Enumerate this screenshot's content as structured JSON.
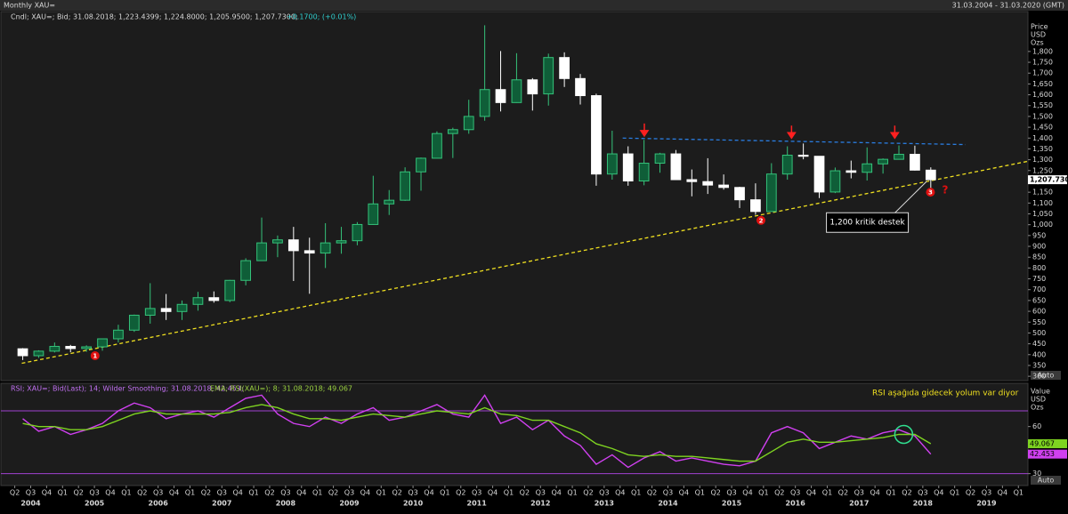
{
  "window_title": "Monthly XAU=",
  "date_range": "31.03.2004 - 31.03.2020 (GMT)",
  "chart_data": [
    {
      "type": "candlestick",
      "legend_text": "Cndl; XAU=; Bid; 31.08.2018; 1,223.4399; 1,224.8000; 1,205.9500; 1,207.7300;",
      "legend_change": "+0.1700; (+0.01%)",
      "axis_label": [
        "Price",
        "USD",
        "Ozs"
      ],
      "scale_button": "Auto",
      "up_color": "#35c27a",
      "down_color": "#ffffff",
      "x": [
        2004.25,
        2004.5,
        2004.75,
        2005,
        2005.25,
        2005.5,
        2005.75,
        2006,
        2006.25,
        2006.5,
        2006.75,
        2007,
        2007.25,
        2007.5,
        2007.75,
        2008,
        2008.25,
        2008.5,
        2008.75,
        2009,
        2009.25,
        2009.5,
        2009.75,
        2010,
        2010.25,
        2010.5,
        2010.75,
        2011,
        2011.25,
        2011.5,
        2011.75,
        2012,
        2012.25,
        2012.5,
        2012.75,
        2013,
        2013.25,
        2013.5,
        2013.75,
        2014,
        2014.25,
        2014.5,
        2014.75,
        2015,
        2015.25,
        2015.5,
        2015.75,
        2016,
        2016.25,
        2016.5,
        2016.75,
        2017,
        2017.25,
        2017.5,
        2017.75,
        2018,
        2018.25,
        2018.5
      ],
      "open": [
        427,
        395,
        416,
        438,
        428,
        436,
        473,
        513,
        582,
        613,
        599,
        632,
        663,
        650,
        743,
        834,
        916,
        930,
        880,
        869,
        916,
        926,
        1001,
        1096,
        1113,
        1244,
        1307,
        1421,
        1439,
        1500,
        1624,
        1564,
        1669,
        1604,
        1772,
        1675,
        1596,
        1234,
        1327,
        1202,
        1284,
        1327,
        1208,
        1199,
        1183,
        1172,
        1115,
        1061,
        1234,
        1321,
        1316,
        1151,
        1249,
        1242,
        1281,
        1302,
        1325,
        1252
      ],
      "high": [
        430,
        420,
        456,
        445,
        443,
        474,
        538,
        585,
        730,
        680,
        650,
        690,
        692,
        745,
        845,
        1033,
        950,
        990,
        940,
        1007,
        990,
        1012,
        1226,
        1160,
        1265,
        1310,
        1431,
        1448,
        1577,
        1921,
        1802,
        1792,
        1677,
        1790,
        1796,
        1696,
        1605,
        1434,
        1362,
        1392,
        1332,
        1345,
        1255,
        1307,
        1232,
        1175,
        1191,
        1284,
        1362,
        1375,
        1316,
        1264,
        1296,
        1357,
        1306,
        1366,
        1365,
        1265
      ],
      "low": [
        375,
        385,
        410,
        411,
        413,
        418,
        456,
        505,
        543,
        560,
        560,
        603,
        640,
        642,
        720,
        834,
        850,
        740,
        681,
        800,
        866,
        905,
        1000,
        1045,
        1110,
        1157,
        1307,
        1308,
        1420,
        1480,
        1523,
        1563,
        1527,
        1550,
        1636,
        1555,
        1180,
        1208,
        1180,
        1182,
        1240,
        1206,
        1131,
        1142,
        1162,
        1077,
        1046,
        1061,
        1208,
        1302,
        1123,
        1146,
        1214,
        1204,
        1236,
        1302,
        1250,
        1160
      ],
      "close": [
        395,
        416,
        438,
        428,
        436,
        473,
        513,
        582,
        613,
        599,
        632,
        663,
        650,
        743,
        834,
        916,
        930,
        880,
        869,
        916,
        926,
        1001,
        1096,
        1113,
        1244,
        1307,
        1421,
        1439,
        1500,
        1624,
        1564,
        1669,
        1604,
        1772,
        1675,
        1596,
        1234,
        1327,
        1202,
        1284,
        1327,
        1208,
        1199,
        1183,
        1172,
        1115,
        1061,
        1234,
        1321,
        1316,
        1151,
        1249,
        1242,
        1281,
        1302,
        1325,
        1252,
        1207.73
      ],
      "last_price": {
        "value": 1207.73,
        "label": "1,207.7300"
      },
      "xlim": [
        2004.13,
        2020.15
      ],
      "ylim": [
        280,
        1935
      ],
      "yticks": [
        300,
        350,
        400,
        450,
        500,
        550,
        600,
        650,
        700,
        750,
        800,
        850,
        900,
        950,
        {
          "value": 1000,
          "label": "1,000"
        },
        {
          "value": 1050,
          "label": "1,050"
        },
        {
          "value": 1100,
          "label": "1,100"
        },
        {
          "value": 1150,
          "label": "1,150"
        },
        {
          "value": 1200,
          "label": "1,200"
        },
        {
          "value": 1250,
          "label": "1,250"
        },
        {
          "value": 1300,
          "label": "1,300"
        },
        {
          "value": 1350,
          "label": "1,350"
        },
        {
          "value": 1400,
          "label": "1,400"
        },
        {
          "value": 1450,
          "label": "1,450"
        },
        {
          "value": 1500,
          "label": "1,500"
        },
        {
          "value": 1550,
          "label": "1,550"
        },
        {
          "value": 1600,
          "label": "1,600"
        },
        {
          "value": 1650,
          "label": "1,650"
        },
        {
          "value": 1700,
          "label": "1,700"
        },
        {
          "value": 1750,
          "label": "1,750"
        },
        {
          "value": 1800,
          "label": "1,800"
        }
      ],
      "trendlines": [
        {
          "color": "#f0e020",
          "x": [
            2004.36,
            2020.15
          ],
          "y": [
            360,
            1293
          ]
        },
        {
          "color": "#2a7de1",
          "x": [
            2013.79,
            2019.17
          ],
          "y": [
            1400,
            1370
          ]
        }
      ],
      "arrows": [
        {
          "x": 2014.13,
          "y": 1410
        },
        {
          "x": 2016.44,
          "y": 1400
        },
        {
          "x": 2018.06,
          "y": 1400
        }
      ],
      "markers": [
        {
          "x": 2005.51,
          "y": 395,
          "label": "1"
        },
        {
          "x": 2015.96,
          "y": 1020,
          "label": "2"
        },
        {
          "x": 2018.62,
          "y": 1150,
          "label": "3"
        }
      ],
      "question": {
        "x": 2018.85,
        "y": 1158,
        "label": "?"
      },
      "callout": {
        "x": 2017.63,
        "y": 1010,
        "tx": 2018.56,
        "ty": 1200,
        "label": "1,200 kritik destek"
      }
    },
    {
      "type": "line",
      "legend_rsi": "RSI; XAU=; Bid(Last); 14; Wilder Smoothing; 31.08.2018; 42.453;",
      "legend_ema": "EMA; RSI(XAU=); 8; 31.08.2018; 49.067",
      "axis_label": [
        "Value",
        "USD",
        "Ozs"
      ],
      "scale_button": "Auto",
      "note": "RSI aşağıda gidecek yolum var diyor",
      "highlight": {
        "x": 2018.2,
        "y": 55
      },
      "x": [
        2004.25,
        2004.5,
        2004.75,
        2005,
        2005.25,
        2005.5,
        2005.75,
        2006,
        2006.25,
        2006.5,
        2006.75,
        2007,
        2007.25,
        2007.5,
        2007.75,
        2008,
        2008.25,
        2008.5,
        2008.75,
        2009,
        2009.25,
        2009.5,
        2009.75,
        2010,
        2010.25,
        2010.5,
        2010.75,
        2011,
        2011.25,
        2011.5,
        2011.75,
        2012,
        2012.25,
        2012.5,
        2012.75,
        2013,
        2013.25,
        2013.5,
        2013.75,
        2014,
        2014.25,
        2014.5,
        2014.75,
        2015,
        2015.25,
        2015.5,
        2015.75,
        2016,
        2016.25,
        2016.5,
        2016.75,
        2017,
        2017.25,
        2017.5,
        2017.75,
        2018,
        2018.25,
        2018.5
      ],
      "series": [
        {
          "name": "RSI",
          "color": "#d040f0",
          "values": [
            65,
            57,
            60,
            55,
            58,
            62,
            70,
            75,
            72,
            65,
            68,
            70,
            66,
            72,
            78,
            80,
            68,
            62,
            60,
            66,
            62,
            68,
            72,
            64,
            66,
            70,
            74,
            68,
            66,
            80,
            62,
            66,
            58,
            64,
            54,
            48,
            36,
            42,
            34,
            40,
            44,
            38,
            40,
            38,
            36,
            35,
            38,
            56,
            60,
            56,
            46,
            50,
            54,
            52,
            56,
            58,
            54,
            42.453
          ]
        },
        {
          "name": "EMA",
          "color": "#7ed321",
          "values": [
            62,
            60,
            60,
            58,
            58,
            60,
            64,
            68,
            70,
            68,
            68,
            68,
            68,
            69,
            72,
            74,
            72,
            68,
            65,
            65,
            64,
            66,
            68,
            67,
            66,
            68,
            70,
            69,
            68,
            72,
            68,
            67,
            64,
            64,
            60,
            56,
            49,
            46,
            42,
            41,
            42,
            41,
            41,
            40,
            39,
            38,
            38,
            44,
            50,
            52,
            50,
            50,
            51,
            52,
            53,
            55,
            55,
            49.067
          ]
        }
      ],
      "levels": [
        70,
        30
      ],
      "level_color": "#a040d0",
      "xlim": [
        2004.13,
        2020.15
      ],
      "ylim": [
        23,
        87
      ],
      "yticks": [
        30,
        60
      ],
      "xticks": [
        {
          "value": 2004.25,
          "label": "Q2"
        },
        {
          "value": 2004.5,
          "label": "Q3"
        },
        {
          "value": 2004.75,
          "label": "Q4"
        },
        {
          "value": 2005,
          "label": "Q1"
        },
        {
          "value": 2005.25,
          "label": "Q2"
        },
        {
          "value": 2005.5,
          "label": "Q3"
        },
        {
          "value": 2005.75,
          "label": "Q4"
        },
        {
          "value": 2006,
          "label": "Q1"
        },
        {
          "value": 2006.25,
          "label": "Q2"
        },
        {
          "value": 2006.5,
          "label": "Q3"
        },
        {
          "value": 2006.75,
          "label": "Q4"
        },
        {
          "value": 2007,
          "label": "Q1"
        },
        {
          "value": 2007.25,
          "label": "Q2"
        },
        {
          "value": 2007.5,
          "label": "Q3"
        },
        {
          "value": 2007.75,
          "label": "Q4"
        },
        {
          "value": 2008,
          "label": "Q1"
        },
        {
          "value": 2008.25,
          "label": "Q2"
        },
        {
          "value": 2008.5,
          "label": "Q3"
        },
        {
          "value": 2008.75,
          "label": "Q4"
        },
        {
          "value": 2009,
          "label": "Q1"
        },
        {
          "value": 2009.25,
          "label": "Q2"
        },
        {
          "value": 2009.5,
          "label": "Q3"
        },
        {
          "value": 2009.75,
          "label": "Q4"
        },
        {
          "value": 2010,
          "label": "Q1"
        },
        {
          "value": 2010.25,
          "label": "Q2"
        },
        {
          "value": 2010.5,
          "label": "Q3"
        },
        {
          "value": 2010.75,
          "label": "Q4"
        },
        {
          "value": 2011,
          "label": "Q1"
        },
        {
          "value": 2011.25,
          "label": "Q2"
        },
        {
          "value": 2011.5,
          "label": "Q3"
        },
        {
          "value": 2011.75,
          "label": "Q4"
        },
        {
          "value": 2012,
          "label": "Q1"
        },
        {
          "value": 2012.25,
          "label": "Q2"
        },
        {
          "value": 2012.5,
          "label": "Q3"
        },
        {
          "value": 2012.75,
          "label": "Q4"
        },
        {
          "value": 2013,
          "label": "Q1"
        },
        {
          "value": 2013.25,
          "label": "Q2"
        },
        {
          "value": 2013.5,
          "label": "Q3"
        },
        {
          "value": 2013.75,
          "label": "Q4"
        },
        {
          "value": 2014,
          "label": "Q1"
        },
        {
          "value": 2014.25,
          "label": "Q2"
        },
        {
          "value": 2014.5,
          "label": "Q3"
        },
        {
          "value": 2014.75,
          "label": "Q4"
        },
        {
          "value": 2015,
          "label": "Q1"
        },
        {
          "value": 2015.25,
          "label": "Q2"
        },
        {
          "value": 2015.5,
          "label": "Q3"
        },
        {
          "value": 2015.75,
          "label": "Q4"
        },
        {
          "value": 2016,
          "label": "Q1"
        },
        {
          "value": 2016.25,
          "label": "Q2"
        },
        {
          "value": 2016.5,
          "label": "Q3"
        },
        {
          "value": 2016.75,
          "label": "Q4"
        },
        {
          "value": 2017,
          "label": "Q1"
        },
        {
          "value": 2017.25,
          "label": "Q2"
        },
        {
          "value": 2017.5,
          "label": "Q3"
        },
        {
          "value": 2017.75,
          "label": "Q4"
        },
        {
          "value": 2018,
          "label": "Q1"
        },
        {
          "value": 2018.25,
          "label": "Q2"
        },
        {
          "value": 2018.5,
          "label": "Q3"
        },
        {
          "value": 2018.75,
          "label": "Q4"
        },
        {
          "value": 2019,
          "label": "Q1"
        },
        {
          "value": 2019.25,
          "label": "Q2"
        },
        {
          "value": 2019.5,
          "label": "Q3"
        },
        {
          "value": 2019.75,
          "label": "Q4"
        },
        {
          "value": 2020,
          "label": "Q1"
        }
      ],
      "year_ticks": [
        {
          "value": 2004.5,
          "label": "2004"
        },
        {
          "value": 2005.5,
          "label": "2005"
        },
        {
          "value": 2006.5,
          "label": "2006"
        },
        {
          "value": 2007.5,
          "label": "2007"
        },
        {
          "value": 2008.5,
          "label": "2008"
        },
        {
          "value": 2009.5,
          "label": "2009"
        },
        {
          "value": 2010.5,
          "label": "2010"
        },
        {
          "value": 2011.5,
          "label": "2011"
        },
        {
          "value": 2012.5,
          "label": "2012"
        },
        {
          "value": 2013.5,
          "label": "2013"
        },
        {
          "value": 2014.5,
          "label": "2014"
        },
        {
          "value": 2015.5,
          "label": "2015"
        },
        {
          "value": 2016.5,
          "label": "2016"
        },
        {
          "value": 2017.5,
          "label": "2017"
        },
        {
          "value": 2018.5,
          "label": "2018"
        },
        {
          "value": 2019.5,
          "label": "2019"
        }
      ]
    }
  ]
}
